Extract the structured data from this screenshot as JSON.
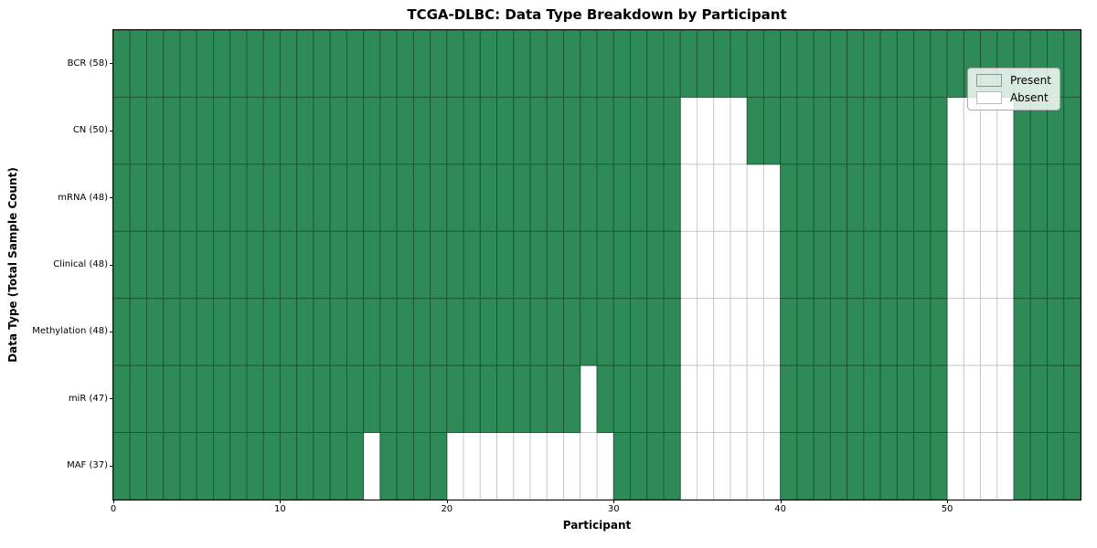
{
  "title": "TCGA-DLBC: Data Type Breakdown by Participant",
  "x_axis_label": "Participant",
  "y_axis_label": "Data Type (Total Sample Count)",
  "legend": {
    "present_label": "Present",
    "absent_label": "Absent"
  },
  "colors": {
    "present": "#2E8B57",
    "absent": "#FFFFFF",
    "present_cell_border": "#1A5434",
    "absent_cell_border": "#C6C6C6",
    "axis_frame": "#000000"
  },
  "chart_data": {
    "type": "heatmap",
    "title": "TCGA-DLBC: Data Type Breakdown by Participant",
    "xlabel": "Participant",
    "ylabel": "Data Type (Total Sample Count)",
    "n_participants": 58,
    "xlim": [
      0,
      58
    ],
    "x_ticks": [
      0,
      10,
      20,
      30,
      40,
      50
    ],
    "legend_position": "upper right",
    "grid": true,
    "cell_states": [
      "Present",
      "Absent"
    ],
    "rows": [
      {
        "label": "BCR (58)",
        "data_type": "BCR",
        "total_samples": 58,
        "absent_participants": []
      },
      {
        "label": "CN (50)",
        "data_type": "CN",
        "total_samples": 50,
        "absent_participants": [
          34,
          35,
          36,
          37,
          50,
          51,
          52,
          53
        ]
      },
      {
        "label": "mRNA (48)",
        "data_type": "mRNA",
        "total_samples": 48,
        "absent_participants": [
          34,
          35,
          36,
          37,
          38,
          39,
          50,
          51,
          52,
          53
        ]
      },
      {
        "label": "Clinical (48)",
        "data_type": "Clinical",
        "total_samples": 48,
        "absent_participants": [
          34,
          35,
          36,
          37,
          38,
          39,
          50,
          51,
          52,
          53
        ]
      },
      {
        "label": "Methylation (48)",
        "data_type": "Methylation",
        "total_samples": 48,
        "absent_participants": [
          34,
          35,
          36,
          37,
          38,
          39,
          50,
          51,
          52,
          53
        ]
      },
      {
        "label": "miR (47)",
        "data_type": "miR",
        "total_samples": 47,
        "absent_participants": [
          28,
          34,
          35,
          36,
          37,
          38,
          39,
          50,
          51,
          52,
          53
        ]
      },
      {
        "label": "MAF (37)",
        "data_type": "MAF",
        "total_samples": 37,
        "absent_participants": [
          15,
          20,
          21,
          22,
          23,
          24,
          25,
          26,
          27,
          28,
          29,
          34,
          35,
          36,
          37,
          38,
          39,
          50,
          51,
          52,
          53
        ]
      }
    ]
  }
}
